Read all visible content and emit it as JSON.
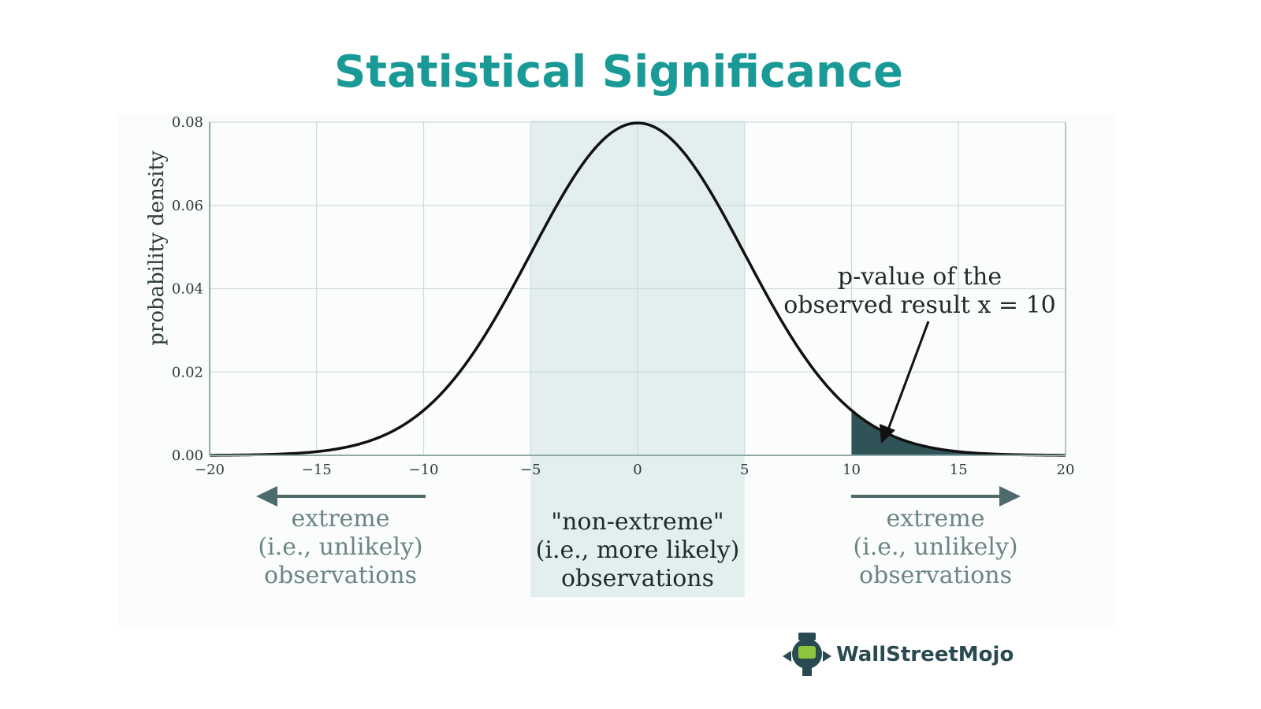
{
  "title": "Statistical Significance",
  "colors": {
    "title": "#1a9a96",
    "curve": "#111111",
    "grid": "#cfdcdc",
    "axis": "#8fa8a8",
    "center_band": "#e3eeee",
    "tail_fill": "#2f5357",
    "extreme_text": "#6b8585",
    "center_text": "#1f2a2a",
    "arrow": "#4f6a6a",
    "brand": "#2a4a52",
    "logo_accent": "#8cc63f"
  },
  "chart_data": {
    "type": "area",
    "title": "Statistical Significance",
    "xlabel": "",
    "ylabel": "probability density",
    "xlim": [
      -20,
      20
    ],
    "ylim": [
      0,
      0.08
    ],
    "x_ticks": [
      -20,
      -15,
      -10,
      -5,
      0,
      5,
      10,
      15,
      20
    ],
    "x_tick_labels": [
      "−20",
      "−15",
      "−10",
      "−5",
      "0",
      "5",
      "10",
      "15",
      "20"
    ],
    "y_ticks": [
      0,
      0.02,
      0.04,
      0.06,
      0.08
    ],
    "y_tick_labels": [
      "0.00",
      "0.02",
      "0.04",
      "0.06",
      "0.08"
    ],
    "grid": true,
    "distribution": {
      "family": "normal",
      "mean": 0,
      "sd": 5
    },
    "non_extreme_band": [
      -5,
      5
    ],
    "shaded_tail_from": 10,
    "observed_x": 10
  },
  "annotations": {
    "pvalue_lines": [
      "p-value of the",
      "observed result x = 10"
    ],
    "left_region": [
      "extreme",
      "(i.e., unlikely)",
      "observations"
    ],
    "center_region": [
      "\"non-extreme\"",
      "(i.e., more likely)",
      "observations"
    ],
    "right_region": [
      "extreme",
      "(i.e., unlikely)",
      "observations"
    ]
  },
  "brand": {
    "name": "WallStreetMojo",
    "logo_icon": "wallstreetmojo-logo-icon"
  }
}
